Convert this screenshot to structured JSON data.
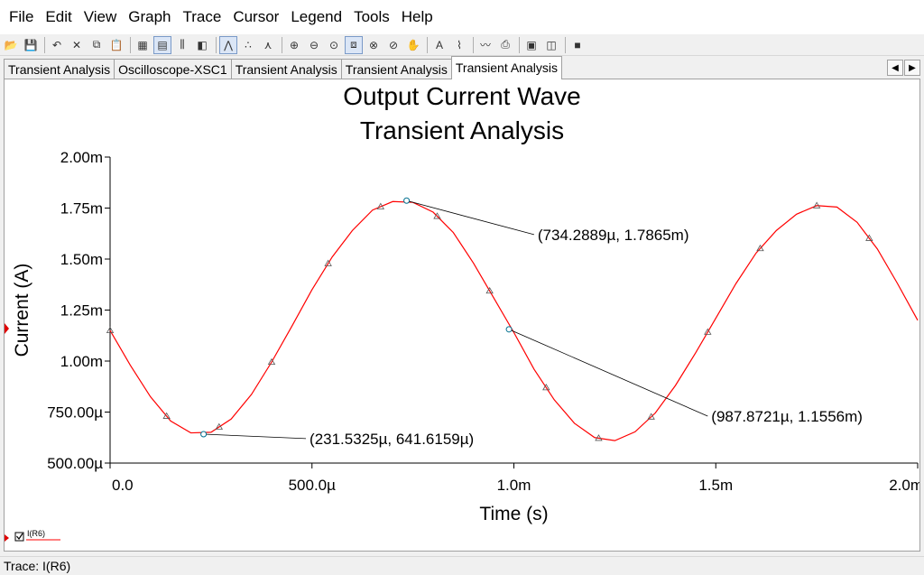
{
  "menu": [
    "File",
    "Edit",
    "View",
    "Graph",
    "Trace",
    "Cursor",
    "Legend",
    "Tools",
    "Help"
  ],
  "toolbar": {
    "buttons": [
      {
        "name": "open-icon",
        "glyph": "📂"
      },
      {
        "name": "save-icon",
        "glyph": "💾"
      },
      {
        "sep": true
      },
      {
        "name": "undo-icon",
        "glyph": "↶"
      },
      {
        "name": "cut-icon",
        "glyph": "✕"
      },
      {
        "name": "copy-icon",
        "glyph": "⧉"
      },
      {
        "name": "paste-icon",
        "glyph": "📋"
      },
      {
        "sep": true
      },
      {
        "name": "grid-icon",
        "glyph": "▦"
      },
      {
        "name": "legend-icon",
        "glyph": "▤",
        "active": true
      },
      {
        "name": "cursors-icon",
        "glyph": "⫼"
      },
      {
        "name": "overlay-icon",
        "glyph": "◧"
      },
      {
        "sep": true
      },
      {
        "name": "line-trace-icon",
        "glyph": "⋀",
        "active": true
      },
      {
        "name": "dot-trace-icon",
        "glyph": "∴"
      },
      {
        "name": "line-dot-trace-icon",
        "glyph": "⋏"
      },
      {
        "sep": true
      },
      {
        "name": "zoom-in-icon",
        "glyph": "⊕"
      },
      {
        "name": "zoom-out-icon",
        "glyph": "⊖"
      },
      {
        "name": "zoom-reset-icon",
        "glyph": "⊙"
      },
      {
        "name": "zoom-area-icon",
        "glyph": "⧈",
        "active": true
      },
      {
        "name": "zoom-x-icon",
        "glyph": "⊗"
      },
      {
        "name": "zoom-y-icon",
        "glyph": "⊘"
      },
      {
        "name": "pan-icon",
        "glyph": "✋"
      },
      {
        "sep": true
      },
      {
        "name": "text-icon",
        "glyph": "A"
      },
      {
        "name": "label-icon",
        "glyph": "⌇"
      },
      {
        "sep": true
      },
      {
        "name": "export-icon",
        "glyph": "〰"
      },
      {
        "name": "print-icon",
        "glyph": "⎙"
      },
      {
        "sep": true
      },
      {
        "name": "properties-icon",
        "glyph": "▣"
      },
      {
        "name": "page-setup-icon",
        "glyph": "◫"
      },
      {
        "sep": true
      },
      {
        "name": "stop-icon",
        "glyph": "■"
      }
    ]
  },
  "tabs": [
    {
      "label": "Transient Analysis",
      "active": false
    },
    {
      "label": "Oscilloscope-XSC1",
      "active": false
    },
    {
      "label": "Transient Analysis",
      "active": false
    },
    {
      "label": "Transient Analysis",
      "active": false
    },
    {
      "label": "Transient Analysis",
      "active": true
    }
  ],
  "tab_scroll": {
    "left": "◀",
    "right": "▶"
  },
  "chart_data": {
    "type": "line",
    "title": "Output Current Wave",
    "subtitle": "Transient Analysis",
    "xlabel": "Time (s)",
    "ylabel": "Current (A)",
    "xlim": [
      0,
      0.002
    ],
    "ylim": [
      0.0005,
      0.002
    ],
    "xticks": [
      0,
      0.0005,
      0.001,
      0.0015,
      0.002
    ],
    "xtick_labels": [
      "0.0",
      "500.0µ",
      "1.0m",
      "1.5m",
      "2.0m"
    ],
    "yticks": [
      0.0005,
      0.00075,
      0.001,
      0.00125,
      0.0015,
      0.00175,
      0.002
    ],
    "ytick_labels": [
      "500.00µ",
      "750.00µ",
      "1.00m",
      "1.25m",
      "1.50m",
      "1.75m",
      "2.00m"
    ],
    "grid": false,
    "line_color": "#ff0000",
    "series": [
      {
        "name": "I(R6)",
        "x": [
          0,
          5e-05,
          0.0001,
          0.00015,
          0.0002,
          0.00025,
          0.0003,
          0.00035,
          0.0004,
          0.00045,
          0.0005,
          0.00055,
          0.0006,
          0.00065,
          0.0007,
          0.00075,
          0.0008,
          0.00085,
          0.0009,
          0.00095,
          0.001,
          0.00105,
          0.0011,
          0.00115,
          0.0012,
          0.00125,
          0.0013,
          0.00135,
          0.0014,
          0.00145,
          0.0015,
          0.00155,
          0.0016,
          0.00165,
          0.0017,
          0.00175,
          0.0018,
          0.00185,
          0.0019,
          0.00195,
          0.002
        ],
        "y": [
          0.00115,
          0.00098,
          0.000825,
          0.000706,
          0.000648,
          0.000651,
          0.000716,
          0.000836,
          0.000995,
          0.00117,
          0.00135,
          0.00151,
          0.00164,
          0.00174,
          0.001782,
          0.001778,
          0.00173,
          0.00163,
          0.00148,
          0.00131,
          0.00114,
          0.00096,
          0.00081,
          0.000695,
          0.000625,
          0.00061,
          0.000653,
          0.000745,
          0.00088,
          0.00104,
          0.00121,
          0.00138,
          0.00153,
          0.00164,
          0.00172,
          0.001762,
          0.001755,
          0.00168,
          0.00155,
          0.00138,
          0.0012
        ],
        "markers_x": [
          0.0,
          0.00014,
          0.00027,
          0.0004,
          0.00054,
          0.00067,
          0.00081,
          0.00094,
          0.00108,
          0.00121,
          0.00134,
          0.00148,
          0.00161,
          0.00175,
          0.00188
        ]
      }
    ],
    "annotations": [
      {
        "x": 0.0002315325,
        "y": 0.0006416159,
        "text": "(231.5325µ, 641.6159µ)",
        "tx": 0.000485,
        "ty": 0.00062
      },
      {
        "x": 0.0007342889,
        "y": 0.0017865,
        "text": "(734.2889µ, 1.7865m)",
        "tx": 0.00105,
        "ty": 0.00162
      },
      {
        "x": 0.0009878721,
        "y": 0.0011556,
        "text": "(987.8721µ, 1.1556m)",
        "tx": 0.00148,
        "ty": 0.00073
      }
    ],
    "legend": {
      "label": "I(R6)",
      "position": "bottom-left"
    }
  },
  "status": {
    "trace_label": "Trace: I(R6)"
  }
}
